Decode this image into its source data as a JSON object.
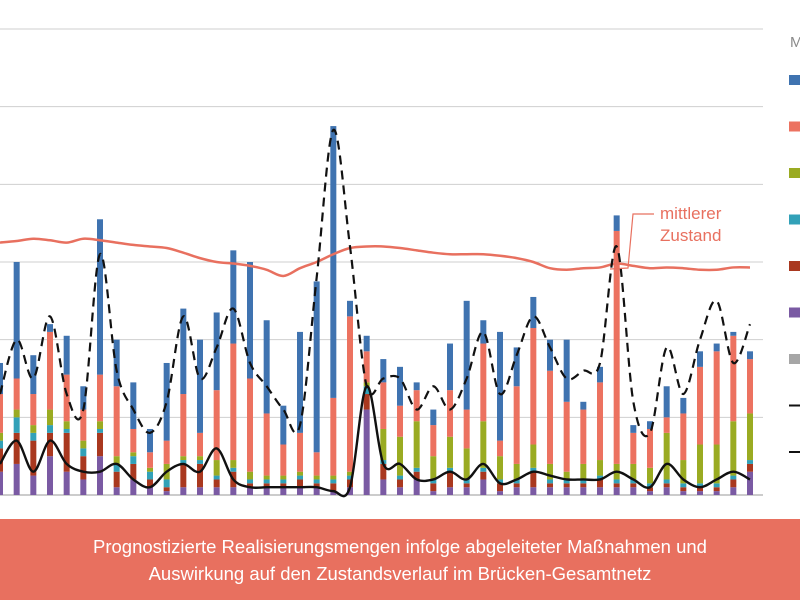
{
  "colors": {
    "blue": "#3f73b0",
    "salmon": "#ec7260",
    "olive": "#9aab22",
    "teal": "#32a1b8",
    "darkred": "#a9381f",
    "purple": "#7a5aa3",
    "gray": "#a6a6a6",
    "black": "#111111",
    "zustand": "#e8705f",
    "grid": "#cfcfcf",
    "band": "#e8705f"
  },
  "legend": {
    "header": "M",
    "marker_colors": [
      "#3f73b0",
      "#ec7260",
      "#9aab22",
      "#32a1b8",
      "#a9381f",
      "#7a5aa3",
      "#a6a6a6"
    ],
    "line_styles": [
      "dashed",
      "solid"
    ]
  },
  "annotation": {
    "line1": "mittlerer",
    "line2": "Zustand"
  },
  "caption": {
    "line1": "Prognostizierte Realisierungsmengen infolge abgeleiteter Maßnahmen und",
    "line2": "Auswirkung auf den Zustandsverlauf im Brücken-Gesamtnetz"
  },
  "chart_data": {
    "type": "bar",
    "stacked": true,
    "ylim": [
      0,
      6
    ],
    "gridlines": [
      1,
      2,
      3,
      4,
      5,
      6
    ],
    "n_categories": 46,
    "series": [
      {
        "color": "#7a5aa3",
        "values": [
          0.3,
          0.4,
          0.25,
          0.5,
          0.3,
          0.2,
          0.5,
          0.1,
          0.2,
          0.1,
          0.05,
          0.1,
          0.1,
          0.1,
          0.1,
          0.1,
          0.1,
          0.1,
          0.1,
          0.1,
          0.05,
          0.1,
          1.1,
          0.2,
          0.1,
          0.2,
          0.05,
          0.1,
          0.1,
          0.2,
          0.05,
          0.1,
          0.1,
          0.1,
          0.1,
          0.1,
          0.1,
          0.1,
          0.1,
          0.05,
          0.1,
          0.05,
          0.05,
          0.05,
          0.1,
          0.3
        ]
      },
      {
        "color": "#a9381f",
        "values": [
          0.3,
          0.4,
          0.45,
          0.3,
          0.5,
          0.3,
          0.3,
          0.2,
          0.2,
          0.1,
          0.05,
          0.3,
          0.3,
          0.1,
          0.2,
          0.05,
          0.05,
          0.05,
          0.1,
          0.05,
          0.1,
          0.1,
          0.2,
          0.2,
          0.1,
          0.1,
          0.1,
          0.2,
          0.05,
          0.1,
          0.1,
          0.05,
          0.2,
          0.05,
          0.05,
          0.05,
          0.1,
          0.05,
          0.05,
          0.05,
          0.05,
          0.05,
          0.05,
          0.05,
          0.1,
          0.1
        ]
      },
      {
        "color": "#32a1b8",
        "values": [
          0.1,
          0.2,
          0.1,
          0.1,
          0.05,
          0.1,
          0.05,
          0.1,
          0.1,
          0.1,
          0.1,
          0.05,
          0.05,
          0.05,
          0.05,
          0.05,
          0.05,
          0.05,
          0.05,
          0.05,
          0.05,
          0.05,
          0.1,
          0.05,
          0.05,
          0.05,
          0.05,
          0.05,
          0.05,
          0.05,
          0.05,
          0.05,
          0.05,
          0.05,
          0.05,
          0.05,
          0.05,
          0.05,
          0.05,
          0.05,
          0.05,
          0.05,
          0.05,
          0.05,
          0.05,
          0.05
        ]
      },
      {
        "color": "#9aab22",
        "values": [
          0.1,
          0.1,
          0.1,
          0.2,
          0.1,
          0.1,
          0.1,
          0.1,
          0.05,
          0.05,
          0.2,
          0.05,
          0.05,
          0.2,
          0.1,
          0.1,
          0.05,
          0.05,
          0.05,
          0.05,
          0.05,
          0.05,
          0.05,
          0.4,
          0.5,
          0.6,
          0.3,
          0.4,
          0.4,
          0.6,
          0.3,
          0.2,
          0.3,
          0.2,
          0.1,
          0.2,
          0.2,
          0.2,
          0.2,
          0.2,
          0.6,
          0.3,
          0.5,
          0.5,
          0.7,
          0.6
        ]
      },
      {
        "color": "#ec7260",
        "values": [
          0.5,
          0.4,
          0.4,
          1.0,
          0.6,
          0.4,
          0.6,
          0.9,
          0.3,
          0.2,
          0.3,
          0.8,
          0.3,
          0.9,
          1.5,
          1.2,
          0.8,
          0.4,
          0.5,
          0.3,
          1.0,
          2.0,
          0.4,
          0.6,
          0.4,
          0.4,
          0.4,
          0.6,
          0.5,
          1.0,
          0.2,
          1.0,
          1.5,
          1.2,
          0.9,
          0.7,
          1.0,
          3.0,
          0.4,
          0.5,
          0.2,
          0.6,
          1.0,
          1.2,
          1.1,
          0.7
        ]
      },
      {
        "color": "#3f73b0",
        "values": [
          0.4,
          1.5,
          0.5,
          0.1,
          0.5,
          0.3,
          2.0,
          0.6,
          0.6,
          0.3,
          1.0,
          1.1,
          1.2,
          1.0,
          1.2,
          1.5,
          1.2,
          0.5,
          1.3,
          2.2,
          3.5,
          0.2,
          0.2,
          0.3,
          0.5,
          0.1,
          0.2,
          0.6,
          1.4,
          0.3,
          1.4,
          0.5,
          0.4,
          0.4,
          0.8,
          0.1,
          0.2,
          0.2,
          0.1,
          0.1,
          0.4,
          0.2,
          0.2,
          0.1,
          0.05,
          0.1
        ]
      }
    ],
    "line_mittlerer_zustand": [
      3.25,
      3.27,
      3.3,
      3.28,
      3.25,
      3.3,
      3.28,
      3.25,
      3.22,
      3.2,
      3.18,
      3.12,
      3.05,
      3.0,
      2.98,
      2.95,
      2.9,
      2.82,
      2.92,
      3.0,
      3.1,
      3.18,
      3.2,
      3.2,
      3.18,
      3.15,
      3.12,
      3.1,
      3.1,
      3.1,
      3.08,
      3.05,
      3.0,
      2.92,
      2.9,
      2.92,
      2.93,
      2.98,
      2.95,
      2.92,
      2.93,
      2.92,
      2.9,
      2.9,
      2.93,
      2.93
    ],
    "line_dashed": [
      1.3,
      2.0,
      1.5,
      2.3,
      1.3,
      1.1,
      3.1,
      1.6,
      1.1,
      0.8,
      1.2,
      2.3,
      1.5,
      1.9,
      2.4,
      1.7,
      1.4,
      1.1,
      0.9,
      2.8,
      4.7,
      3.2,
      1.4,
      1.5,
      1.5,
      1.1,
      1.4,
      1.1,
      1.5,
      2.1,
      1.3,
      1.8,
      2.3,
      1.9,
      1.5,
      1.6,
      1.7,
      3.2,
      1.2,
      0.8,
      1.9,
      1.3,
      2.0,
      2.5,
      1.7,
      2.2
    ],
    "line_solid": [
      0.4,
      0.7,
      0.3,
      0.7,
      0.4,
      0.3,
      0.3,
      0.4,
      0.2,
      0.1,
      0.3,
      0.4,
      0.3,
      0.6,
      0.2,
      0.1,
      0.1,
      0.1,
      0.1,
      0.1,
      0.05,
      0.1,
      1.4,
      0.4,
      0.4,
      0.2,
      0.2,
      0.3,
      0.2,
      0.4,
      0.15,
      0.2,
      0.3,
      0.25,
      0.2,
      0.2,
      0.2,
      0.3,
      0.2,
      0.1,
      0.4,
      0.2,
      0.1,
      0.2,
      0.3,
      0.2
    ]
  }
}
